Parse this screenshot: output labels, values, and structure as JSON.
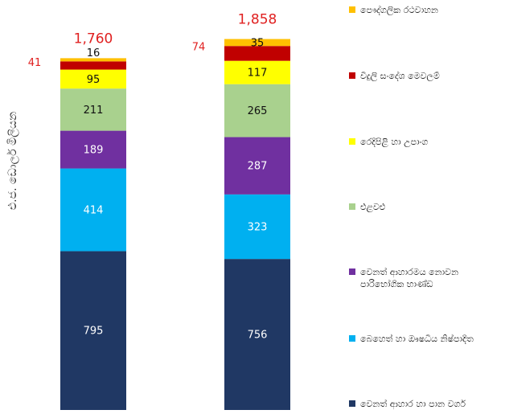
{
  "chart_data": {
    "type": "stacked_bar",
    "y_label": "එ.ජ. ඩොලර් මිලියන",
    "categories": [
      null,
      null
    ],
    "ylim": [
      0,
      2000
    ],
    "series": [
      {
        "name": "වෙනත් ආහාර හා පාන වර්ග",
        "color": "#203864",
        "values": [
          795,
          756
        ]
      },
      {
        "name": "බෙහෙත් හා ඖෂධීය නිෂ්පාදිත",
        "color": "#00b0f0",
        "values": [
          414,
          323
        ]
      },
      {
        "name": "වෙනත් ආහාරමය නොවන පාරිභෝගික භාණ්ඩ",
        "color": "#7030a0",
        "values": [
          189,
          287
        ]
      },
      {
        "name": "එළවළු",
        "color": "#a9d18e",
        "values": [
          211,
          265
        ]
      },
      {
        "name": "රෙදිපිළි හා උපාංග",
        "color": "#ffff00",
        "values": [
          95,
          117
        ]
      },
      {
        "name": "විදුලි සංදේශ මෙවලම්",
        "color": "#c00000",
        "values": [
          41,
          74
        ]
      },
      {
        "name": "පෞද්ගලික රථවාහන",
        "color": "#ffc000",
        "values": [
          16,
          35
        ]
      }
    ],
    "totals": {
      "values": [
        1760,
        1858
      ],
      "value_labels": [
        "1,760",
        "1,858"
      ]
    }
  }
}
